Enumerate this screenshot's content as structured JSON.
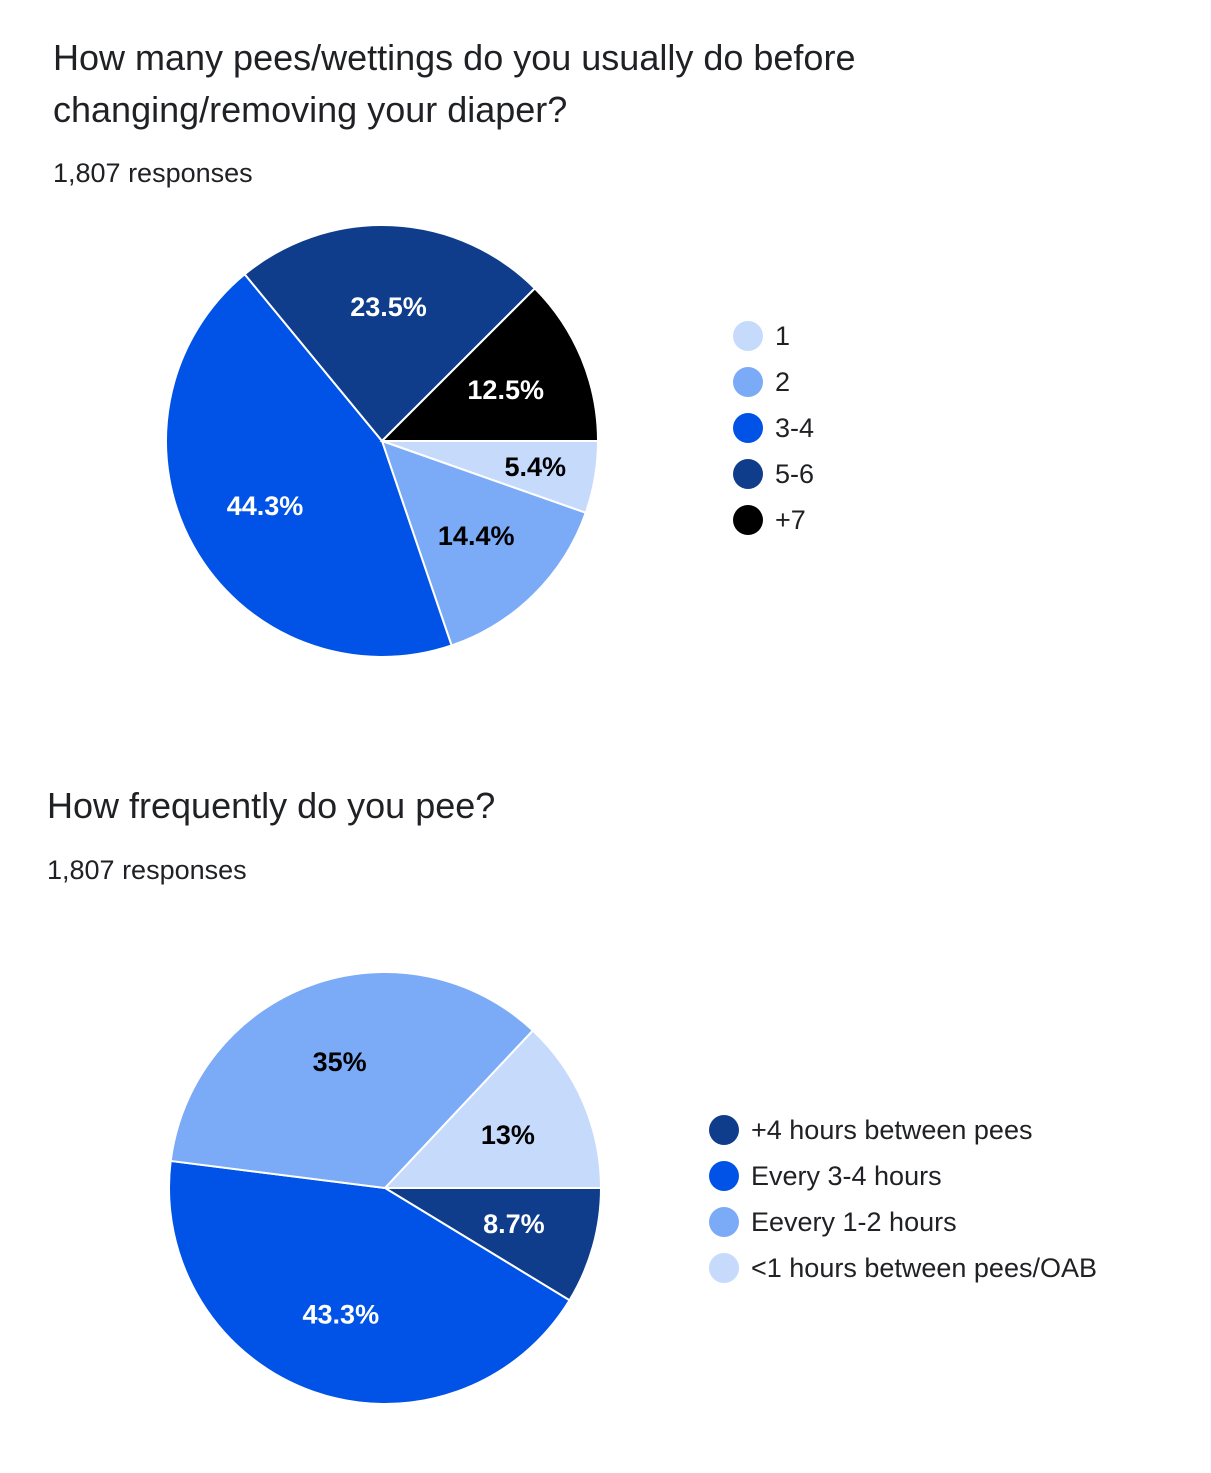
{
  "colors": {
    "very_light_blue": "#c6dafc",
    "light_blue": "#7baaf7",
    "blue": "#0053e6",
    "dark_blue": "#0f3d8c",
    "black": "#000000"
  },
  "chart_data": [
    {
      "type": "pie",
      "title": "How many pees/wettings do you usually do before changing/removing your diaper?",
      "subtitle": "1,807 responses",
      "legend_position": "right",
      "categories": [
        "1",
        "2",
        "3-4",
        "5-6",
        "+7"
      ],
      "values": [
        5.4,
        14.4,
        44.3,
        23.5,
        12.5
      ],
      "labels": [
        "5.4%",
        "14.4%",
        "44.3%",
        "23.5%",
        "12.5%"
      ],
      "colors": [
        "#c6dafc",
        "#7baaf7",
        "#0053e6",
        "#0f3d8c",
        "#000000"
      ],
      "label_colors": [
        "#000000",
        "#000000",
        "#ffffff",
        "#ffffff",
        "#ffffff"
      ]
    },
    {
      "type": "pie",
      "title": "How frequently do you pee?",
      "subtitle": "1,807 responses",
      "legend_position": "right",
      "categories": [
        "+4 hours between pees",
        "Every 3-4 hours",
        "Eevery 1-2 hours",
        "<1 hours between pees/OAB"
      ],
      "values": [
        8.7,
        43.3,
        35,
        13
      ],
      "labels": [
        "8.7%",
        "43.3%",
        "35%",
        "13%"
      ],
      "colors": [
        "#0f3d8c",
        "#0053e6",
        "#7baaf7",
        "#c6dafc"
      ],
      "label_colors": [
        "#ffffff",
        "#ffffff",
        "#000000",
        "#000000"
      ]
    }
  ]
}
